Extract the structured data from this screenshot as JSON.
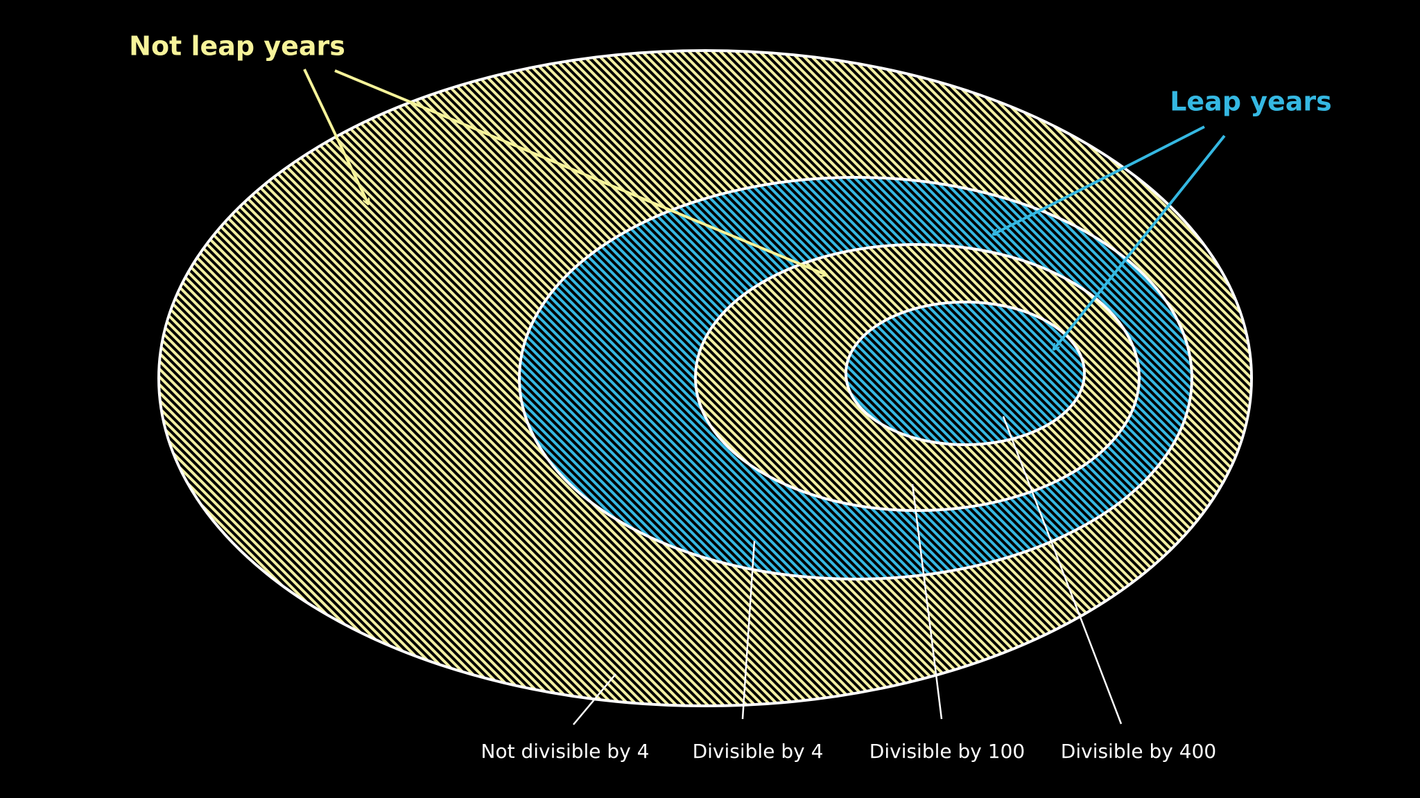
{
  "annotations": {
    "not_leap": "Not leap years",
    "leap": "Leap years"
  },
  "regions": [
    "Not divisible by 4",
    "Divisible by 4",
    "Divisible by 100",
    "Divisible by 400"
  ]
}
